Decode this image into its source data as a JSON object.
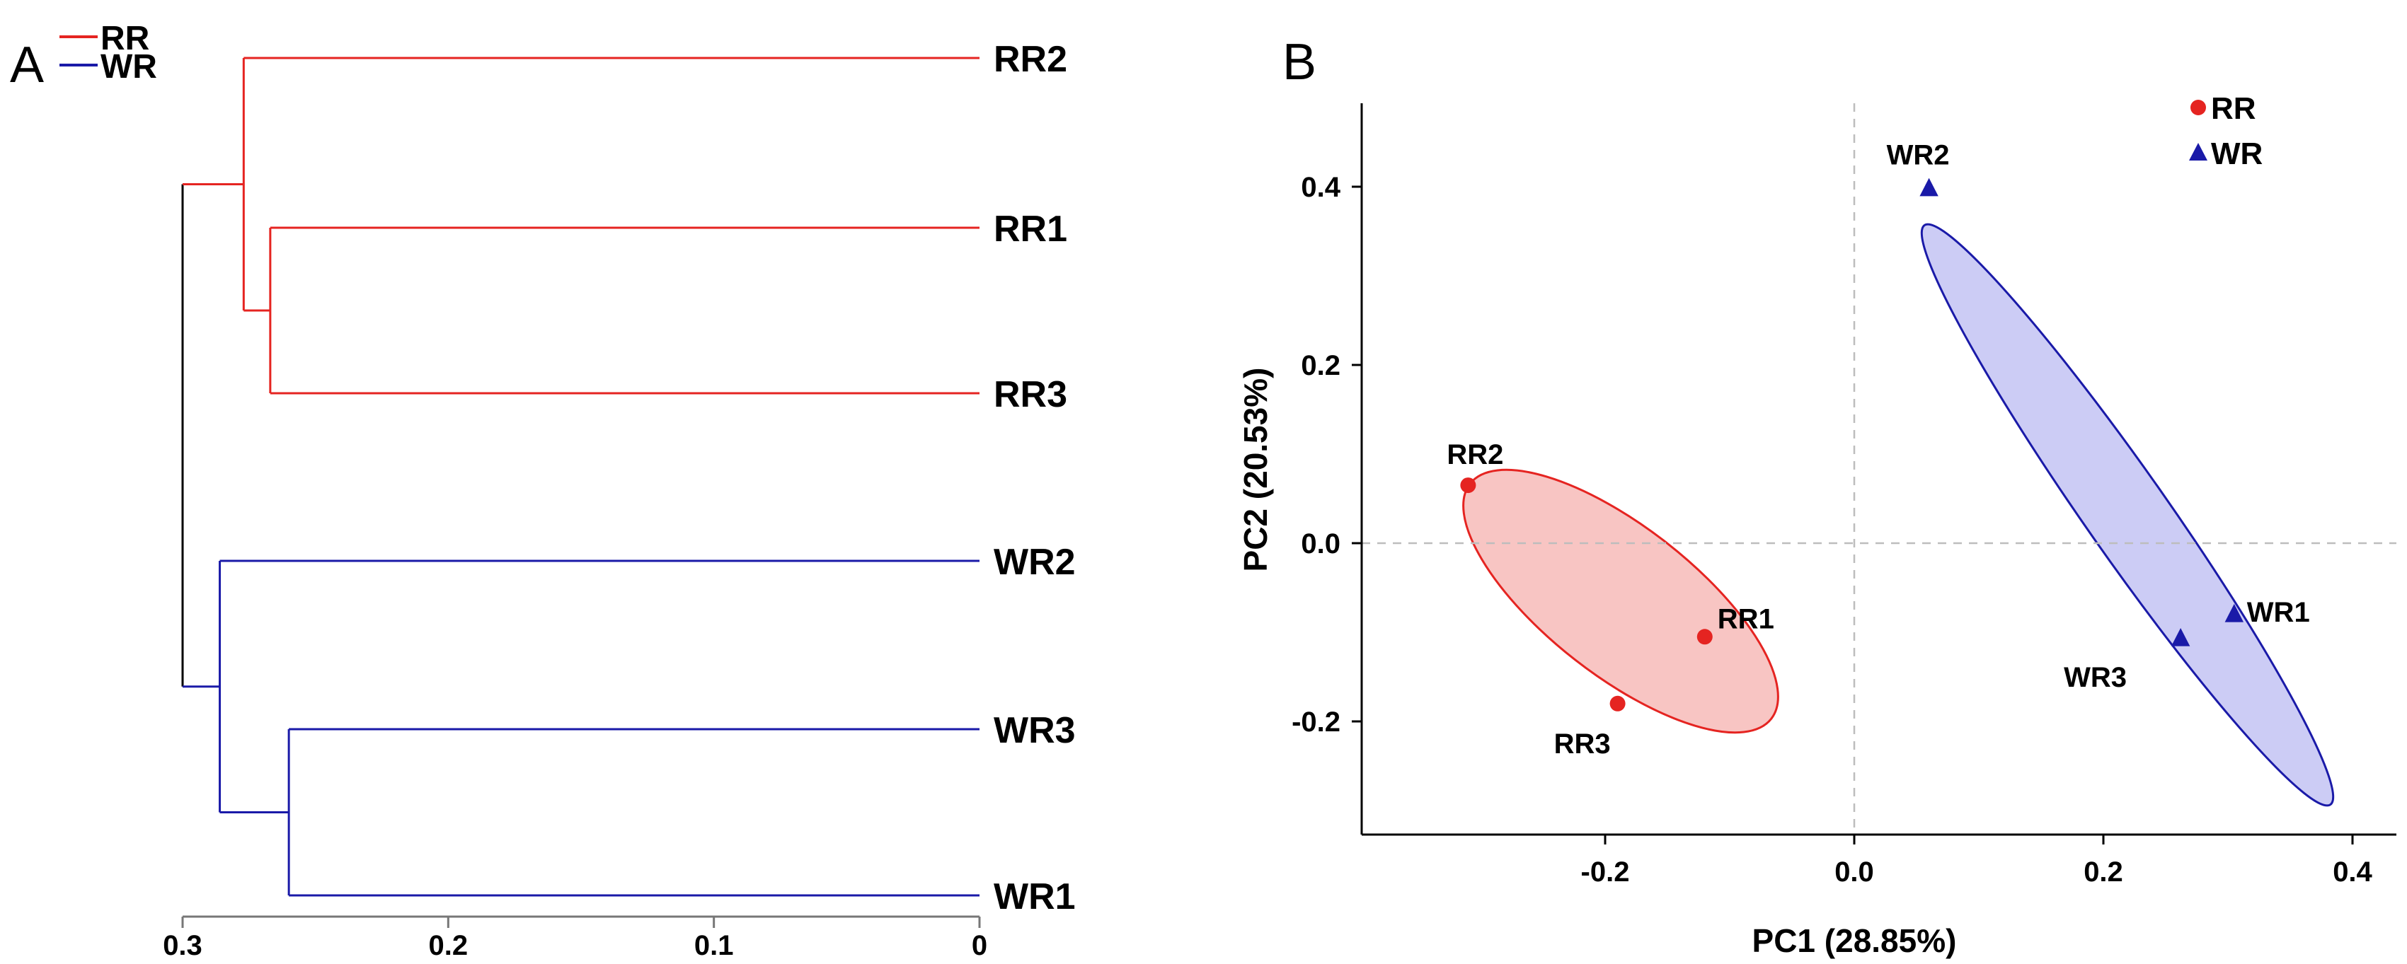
{
  "chart_data": [
    {
      "type": "dendrogram",
      "panel": "A",
      "legend": [
        {
          "label": "RR",
          "color": "#e52421"
        },
        {
          "label": "WR",
          "color": "#1a1aa8"
        }
      ],
      "x_axis": {
        "min": 0,
        "max": 0.3,
        "reversed": true,
        "ticks": [
          0.3,
          0.2,
          0.1,
          0
        ],
        "tick_labels": [
          "0.3",
          "0.2",
          "0.1",
          "0"
        ]
      },
      "leaves": [
        {
          "label": "RR2",
          "group": "RR"
        },
        {
          "label": "RR1",
          "group": "RR"
        },
        {
          "label": "RR3",
          "group": "RR"
        },
        {
          "label": "WR2",
          "group": "WR"
        },
        {
          "label": "WR3",
          "group": "WR"
        },
        {
          "label": "WR1",
          "group": "WR"
        }
      ],
      "merges": [
        {
          "members": [
            "RR1",
            "RR3"
          ],
          "height": 0.267,
          "group": "RR"
        },
        {
          "members": [
            "RR2",
            "RR1",
            "RR3"
          ],
          "height": 0.277,
          "group": "RR"
        },
        {
          "members": [
            "WR3",
            "WR1"
          ],
          "height": 0.26,
          "group": "WR"
        },
        {
          "members": [
            "WR2",
            "WR3",
            "WR1"
          ],
          "height": 0.286,
          "group": "WR"
        },
        {
          "members": [
            "RR",
            "WR"
          ],
          "height": 0.3,
          "group": "root"
        }
      ]
    },
    {
      "type": "scatter",
      "panel": "B",
      "xlabel": "PC1 (28.85%)",
      "ylabel": "PC2 (20.53%)",
      "xlim": [
        -0.37,
        0.42
      ],
      "ylim": [
        -0.33,
        0.5
      ],
      "xticks": [
        -0.2,
        0.0,
        0.2,
        0.4
      ],
      "xtick_labels": [
        "-0.2",
        "0.0",
        "0.2",
        "0.4"
      ],
      "yticks": [
        -0.2,
        0.0,
        0.2,
        0.4
      ],
      "ytick_labels": [
        "-0.2",
        "0.0",
        "0.2",
        "0.4"
      ],
      "reference_lines": {
        "x": 0,
        "y": 0
      },
      "legend": [
        {
          "label": "RR",
          "marker": "circle",
          "color": "#e52421"
        },
        {
          "label": "WR",
          "marker": "triangle",
          "color": "#1a1aa8"
        }
      ],
      "series": [
        {
          "name": "RR",
          "marker": "circle",
          "color": "#e52421",
          "ellipse_fill": "#f8c2c0",
          "points": [
            {
              "label": "RR2",
              "x": -0.31,
              "y": 0.065
            },
            {
              "label": "RR1",
              "x": -0.12,
              "y": -0.105
            },
            {
              "label": "RR3",
              "x": -0.19,
              "y": -0.18
            }
          ]
        },
        {
          "name": "WR",
          "marker": "triangle",
          "color": "#1a1aa8",
          "ellipse_fill": "#c9c9f4",
          "points": [
            {
              "label": "WR2",
              "x": 0.06,
              "y": 0.398
            },
            {
              "label": "WR1",
              "x": 0.305,
              "y": -0.08
            },
            {
              "label": "WR3",
              "x": 0.262,
              "y": -0.107
            }
          ]
        }
      ]
    }
  ],
  "panel_labels": {
    "a": "A",
    "b": "B"
  },
  "colors": {
    "red": "#e52421",
    "blue": "#1a1aa8",
    "black": "#000000",
    "axis_gray": "#777777",
    "grid_gray": "#bdbdbd"
  }
}
